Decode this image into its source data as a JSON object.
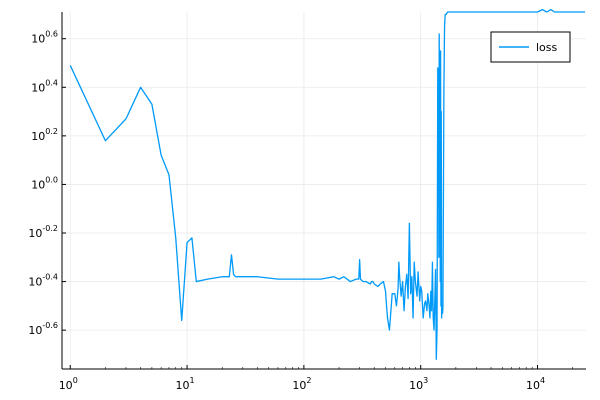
{
  "chart_data": {
    "type": "line",
    "xscale": "log10",
    "yscale": "log10",
    "xlim": [
      0.85,
      26000
    ],
    "ylim": [
      -0.76,
      0.71
    ],
    "grid": true,
    "legend_position": "top-right",
    "series": [
      {
        "name": "loss",
        "color": "#009af9",
        "x": [
          1,
          2,
          3,
          4,
          5,
          6,
          7,
          8,
          9,
          10,
          11,
          12,
          15,
          20,
          23,
          24,
          25,
          26,
          30,
          40,
          60,
          80,
          100,
          140,
          180,
          200,
          220,
          250,
          280,
          295,
          300,
          305,
          320,
          340,
          370,
          380,
          390,
          400,
          430,
          450,
          480,
          500,
          510,
          520,
          540,
          570,
          600,
          620,
          640,
          650,
          660,
          680,
          700,
          720,
          740,
          760,
          780,
          800,
          820,
          840,
          860,
          880,
          900,
          930,
          950,
          980,
          1000,
          1020,
          1050,
          1080,
          1100,
          1130,
          1150,
          1180,
          1200,
          1220,
          1240,
          1260,
          1280,
          1300,
          1320,
          1340,
          1360,
          1380,
          1400,
          1420,
          1430,
          1440,
          1450,
          1460,
          1470,
          1480,
          1490,
          1500,
          1510,
          1520,
          1530,
          1540,
          1550,
          1560,
          1580,
          1600,
          1620,
          1650,
          1700,
          1750,
          1800,
          1850,
          1900,
          1950,
          2000,
          2100,
          2200,
          2300,
          2400,
          2500,
          3000,
          4000,
          5000,
          6000,
          7000,
          8000,
          9000,
          10000,
          11000,
          12000,
          13000,
          14000,
          15000,
          16000,
          17000,
          18000,
          19000,
          20000,
          22000,
          24000,
          25500
        ],
        "y": [
          0.49,
          0.18,
          0.27,
          0.4,
          0.33,
          0.12,
          0.04,
          -0.22,
          -0.56,
          -0.24,
          -0.22,
          -0.4,
          -0.39,
          -0.38,
          -0.38,
          -0.29,
          -0.37,
          -0.38,
          -0.38,
          -0.38,
          -0.39,
          -0.39,
          -0.39,
          -0.39,
          -0.38,
          -0.39,
          -0.38,
          -0.4,
          -0.39,
          -0.39,
          -0.31,
          -0.39,
          -0.4,
          -0.4,
          -0.41,
          -0.4,
          -0.4,
          -0.41,
          -0.42,
          -0.41,
          -0.4,
          -0.44,
          -0.5,
          -0.55,
          -0.6,
          -0.45,
          -0.45,
          -0.5,
          -0.43,
          -0.32,
          -0.38,
          -0.46,
          -0.4,
          -0.52,
          -0.42,
          -0.37,
          -0.47,
          -0.16,
          -0.45,
          -0.38,
          -0.55,
          -0.32,
          -0.4,
          -0.46,
          -0.36,
          -0.48,
          -0.42,
          -0.44,
          -0.55,
          -0.49,
          -0.48,
          -0.52,
          -0.45,
          -0.5,
          -0.55,
          -0.44,
          -0.52,
          -0.32,
          -0.55,
          -0.6,
          -0.48,
          -0.35,
          -0.72,
          -0.6,
          0.48,
          0.42,
          -0.3,
          0.62,
          0.3,
          0.45,
          -0.4,
          0.55,
          -0.5,
          0.3,
          -0.55,
          -0.52,
          -0.5,
          -0.53,
          -0.5,
          -0.2,
          0.4,
          0.65,
          0.7,
          0.7,
          0.71,
          0.71,
          0.71,
          0.71,
          0.71,
          0.71,
          0.71,
          0.71,
          0.71,
          0.71,
          0.71,
          0.71,
          0.71,
          0.71,
          0.71,
          0.71,
          0.71,
          0.71,
          0.71,
          0.71,
          0.72,
          0.71,
          0.72,
          0.71,
          0.71,
          0.71,
          0.71,
          0.71,
          0.71,
          0.71,
          0.71,
          0.71,
          0.71
        ]
      }
    ],
    "x_ticks": [
      {
        "value": 1,
        "base": "10",
        "exp": "0"
      },
      {
        "value": 10,
        "base": "10",
        "exp": "1"
      },
      {
        "value": 100,
        "base": "10",
        "exp": "2"
      },
      {
        "value": 1000,
        "base": "10",
        "exp": "3"
      },
      {
        "value": 10000,
        "base": "10",
        "exp": "4"
      }
    ],
    "y_ticks": [
      {
        "value": 0.6,
        "base": "10",
        "exp": "0.6"
      },
      {
        "value": 0.4,
        "base": "10",
        "exp": "0.4"
      },
      {
        "value": 0.2,
        "base": "10",
        "exp": "0.2"
      },
      {
        "value": 0.0,
        "base": "10",
        "exp": "0.0"
      },
      {
        "value": -0.2,
        "base": "10",
        "exp": "-0.2"
      },
      {
        "value": -0.4,
        "base": "10",
        "exp": "-0.4"
      },
      {
        "value": -0.6,
        "base": "10",
        "exp": "-0.6"
      }
    ]
  }
}
